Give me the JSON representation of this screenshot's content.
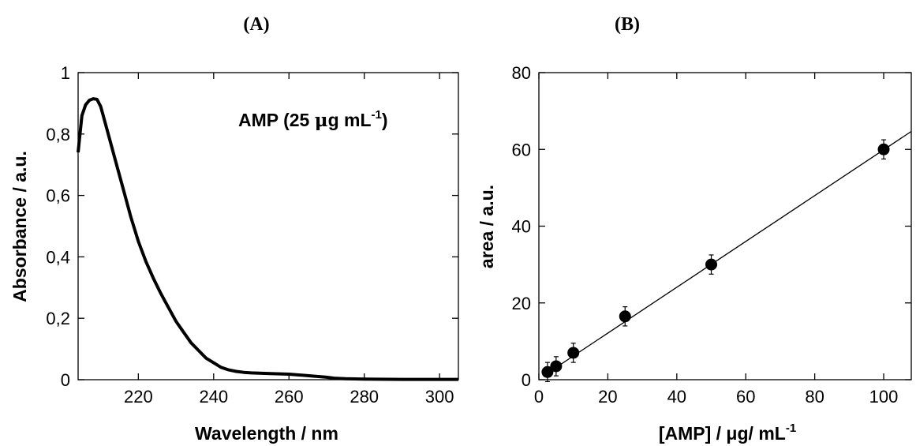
{
  "chart_data": [
    {
      "id": "A",
      "panel_label": "(A)",
      "type": "line",
      "xlabel": "Wavelength / nm",
      "ylabel": "Absorbance / a.u.",
      "annotation": {
        "main": "AMP (25 ",
        "mu": "μ",
        "unit": "g mL",
        "sup": "-1",
        "close": ")"
      },
      "xlim": [
        204,
        305
      ],
      "ylim": [
        0,
        1
      ],
      "x_ticks": [
        220,
        240,
        260,
        280,
        300
      ],
      "x_tick_labels": [
        "220",
        "240",
        "260",
        "280",
        "300"
      ],
      "y_ticks": [
        0,
        0.2,
        0.4,
        0.6,
        0.8,
        1
      ],
      "y_tick_labels": [
        "0",
        "0,2",
        "0,4",
        "0,6",
        "0,8",
        "1"
      ],
      "grid": false,
      "series": [
        {
          "x": [
            204,
            205,
            206,
            207,
            208,
            209,
            210,
            212,
            214,
            216,
            218,
            220,
            222,
            224,
            226,
            228,
            230,
            232,
            234,
            236,
            238,
            240,
            242,
            244,
            246,
            248,
            250,
            255,
            260,
            265,
            270,
            272,
            275,
            280,
            290,
            300,
            305
          ],
          "y": [
            0.74,
            0.86,
            0.895,
            0.91,
            0.915,
            0.913,
            0.89,
            0.8,
            0.71,
            0.62,
            0.53,
            0.45,
            0.385,
            0.33,
            0.28,
            0.235,
            0.19,
            0.155,
            0.12,
            0.095,
            0.07,
            0.055,
            0.04,
            0.032,
            0.027,
            0.024,
            0.022,
            0.02,
            0.018,
            0.013,
            0.008,
            0.005,
            0.003,
            0.002,
            0.001,
            0.001,
            0.001
          ]
        }
      ]
    },
    {
      "id": "B",
      "panel_label": "(B)",
      "type": "scatter",
      "xlabel_main": "[AMP] / μg/ mL",
      "xlabel_sup": "-1",
      "ylabel": "area / a.u.",
      "xlim": [
        0,
        108
      ],
      "ylim": [
        0,
        80
      ],
      "x_ticks": [
        0,
        20,
        40,
        60,
        80,
        100
      ],
      "x_tick_labels": [
        "0",
        "20",
        "40",
        "60",
        "80",
        "100"
      ],
      "y_ticks": [
        0,
        20,
        40,
        60,
        80
      ],
      "y_tick_labels": [
        "0",
        "20",
        "40",
        "60",
        "80"
      ],
      "grid": false,
      "points": [
        {
          "x": 2.5,
          "y": 2,
          "err": 2.5
        },
        {
          "x": 5,
          "y": 3.5,
          "err": 2.5
        },
        {
          "x": 10,
          "y": 7,
          "err": 2.5
        },
        {
          "x": 25,
          "y": 16.5,
          "err": 2.5
        },
        {
          "x": 50,
          "y": 30,
          "err": 2.5
        },
        {
          "x": 100,
          "y": 60,
          "err": 2.5
        }
      ],
      "fit": {
        "slope": 0.597,
        "intercept": 0.2
      }
    }
  ]
}
